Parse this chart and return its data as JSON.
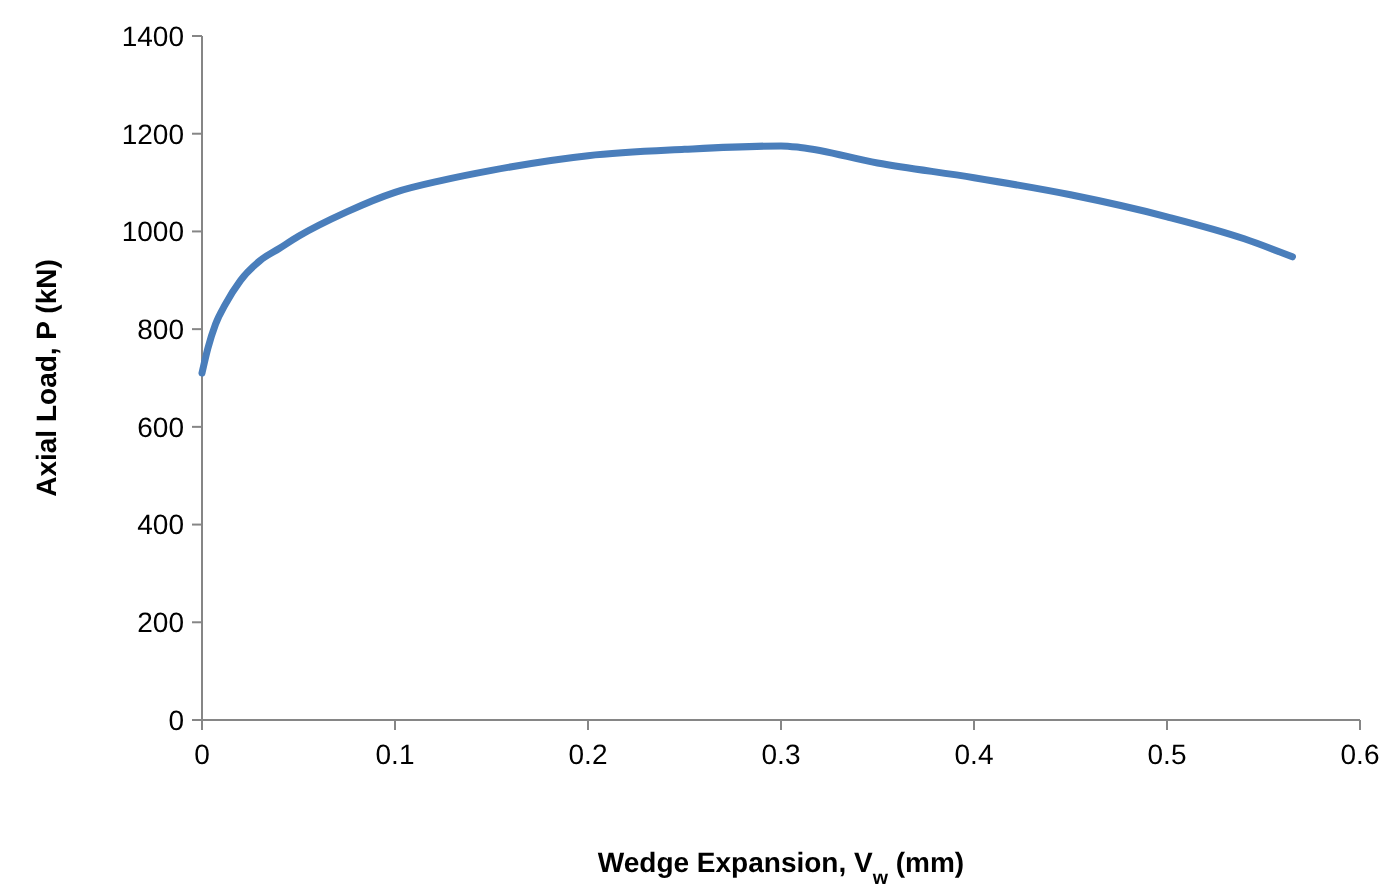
{
  "chart_data": {
    "type": "line",
    "xlabel": "Wedge Expansion, V$_{w}$ (mm)",
    "ylabel": "Axial Load, P (kN)",
    "x": [
      0,
      0.003,
      0.007,
      0.012,
      0.02,
      0.03,
      0.04,
      0.05,
      0.075,
      0.1,
      0.125,
      0.15,
      0.2,
      0.25,
      0.3,
      0.31,
      0.35,
      0.4,
      0.45,
      0.5,
      0.54,
      0.565
    ],
    "series": [
      {
        "color": "#4a7ebb",
        "values": [
          710,
          760,
          810,
          850,
          900,
          940,
          965,
          990,
          1040,
          1080,
          1105,
          1125,
          1155,
          1168,
          1175,
          1172,
          1140,
          1110,
          1075,
          1030,
          985,
          948
        ]
      }
    ],
    "xlim": [
      0,
      0.6
    ],
    "xticks": [
      0,
      0.1,
      0.2,
      0.3,
      0.4,
      0.5,
      0.6
    ],
    "ylim": [
      0,
      1400
    ],
    "yticks": [
      0,
      200,
      400,
      600,
      800,
      1000,
      1200,
      1400
    ],
    "grid": false,
    "marker": "none",
    "line_style": "solid"
  }
}
